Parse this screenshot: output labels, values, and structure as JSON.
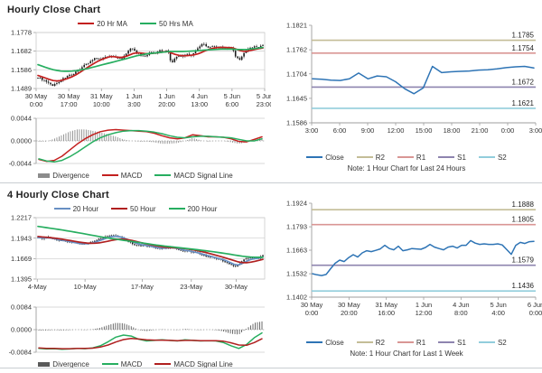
{
  "colors": {
    "red": "#C3201F",
    "darkred": "#B02020",
    "green": "#27AE60",
    "steel": "#688FC3",
    "blue": "#2E74B5",
    "olive": "#C4BD97",
    "pink": "#D99694",
    "purple": "#8E84AF",
    "cyan": "#92CDDC",
    "gray": "#8C8C8C",
    "darkgray": "#595959",
    "candle": "#1A1A1A",
    "axis": "#9E9E9E",
    "grid": "#CCCCCC",
    "text": "#333333",
    "divider": "#C9CDD2"
  },
  "chart_data": [
    {
      "id": "hourly",
      "type": "candlestick",
      "title": "Hourly Close Chart",
      "legend": [
        {
          "label": "20 Hr MA",
          "color": "red"
        },
        {
          "label": "50 Hrs MA",
          "color": "green"
        }
      ],
      "ylim": [
        1.1489,
        1.1778
      ],
      "yticks": [
        "1.1778",
        "1.1682",
        "1.1586",
        "1.1489"
      ],
      "xticks": [
        [
          "30 May",
          "0:00"
        ],
        [
          "30 May",
          "17:00"
        ],
        [
          "31 May",
          "10:00"
        ],
        [
          "1 Jun",
          "3:00"
        ],
        [
          "1 Jun",
          "20:00"
        ],
        [
          "4 Jun",
          "13:00"
        ],
        [
          "5 Jun",
          "6:00"
        ],
        [
          "5 Jun",
          "23:00"
        ]
      ],
      "close": [
        1.1545,
        1.1538,
        1.1525,
        1.1512,
        1.1505,
        1.1518,
        1.153,
        1.1545,
        1.156,
        1.1552,
        1.1575,
        1.159,
        1.1608,
        1.162,
        1.1632,
        1.1645,
        1.1638,
        1.1652,
        1.1648,
        1.166,
        1.1655,
        1.1645,
        1.164,
        1.1665,
        1.169,
        1.1698,
        1.1672,
        1.166,
        1.1655,
        1.167,
        1.1678,
        1.1672,
        1.1685,
        1.168,
        1.169,
        1.1618,
        1.1648,
        1.166,
        1.1655,
        1.1665,
        1.166,
        1.167,
        1.1695,
        1.172,
        1.171,
        1.17,
        1.1705,
        1.1698,
        1.1702,
        1.17,
        1.1695,
        1.1698,
        1.1648,
        1.164,
        1.1668,
        1.1692,
        1.17,
        1.1705,
        1.1702,
        1.1712
      ],
      "series": [
        {
          "name": "20 Hr MA",
          "color": "red",
          "values": [
            1.1556,
            1.155,
            1.1543,
            1.1536,
            1.153,
            1.1528,
            1.153,
            1.1535,
            1.1542,
            1.155,
            1.156,
            1.1572,
            1.1585,
            1.1598,
            1.161,
            1.1622,
            1.1632,
            1.1641,
            1.1648,
            1.1654,
            1.1653,
            1.165,
            1.165,
            1.1654,
            1.1662,
            1.167,
            1.1673,
            1.1672,
            1.167,
            1.1669,
            1.167,
            1.1672,
            1.1675,
            1.1678,
            1.168,
            1.1672,
            1.1665,
            1.166,
            1.1658,
            1.1658,
            1.166,
            1.1663,
            1.1668,
            1.1676,
            1.1685,
            1.1692,
            1.1697,
            1.17,
            1.1701,
            1.1701,
            1.17,
            1.1699,
            1.1692,
            1.1685,
            1.1681,
            1.1682,
            1.1686,
            1.1691,
            1.1695,
            1.1698
          ]
        },
        {
          "name": "50 Hrs MA",
          "color": "green",
          "values": [
            1.1612,
            1.1605,
            1.1598,
            1.1592,
            1.1586,
            1.1582,
            1.1579,
            1.1578,
            1.1578,
            1.1579,
            1.1581,
            1.1584,
            1.1588,
            1.1592,
            1.1597,
            1.1602,
            1.1607,
            1.1612,
            1.1617,
            1.1622,
            1.1627,
            1.1632,
            1.1637,
            1.1642,
            1.1648,
            1.1653,
            1.1658,
            1.1662,
            1.1666,
            1.1669,
            1.1671,
            1.1673,
            1.1675,
            1.1677,
            1.1679,
            1.168,
            1.168,
            1.168,
            1.168,
            1.1681,
            1.1682,
            1.1683,
            1.1684,
            1.1686,
            1.1688,
            1.1689,
            1.169,
            1.1691,
            1.1692,
            1.1692,
            1.1692,
            1.1692,
            1.1691,
            1.169,
            1.169,
            1.1691,
            1.1693,
            1.1695,
            1.1698,
            1.1701
          ]
        }
      ],
      "macd": {
        "ylim": [
          -0.0044,
          0.0044
        ],
        "yticks": [
          "0.0044",
          "0.0000",
          "-0.0044"
        ],
        "macd_color": "red",
        "signal_color": "green",
        "bar_color": "gray",
        "macd": [
          -0.0036,
          -0.004,
          -0.0038,
          -0.003,
          -0.0018,
          -0.0006,
          0.0004,
          0.0012,
          0.0018,
          0.0021,
          0.0022,
          0.0021,
          0.002,
          0.0019,
          0.0018,
          0.0015,
          0.001,
          0.0006,
          0.0004,
          0.0006,
          0.0012,
          0.001,
          0.0008,
          0.0008,
          0.0007,
          0.0004,
          -0.0001,
          -0.0002,
          0.0003,
          0.0008
        ],
        "signal": [
          -0.0035,
          -0.0039,
          -0.0041,
          -0.0038,
          -0.0031,
          -0.0022,
          -0.0012,
          -0.0002,
          0.0006,
          0.0012,
          0.0016,
          0.0019,
          0.002,
          0.002,
          0.0019,
          0.0017,
          0.0014,
          0.001,
          0.0007,
          0.0006,
          0.0008,
          0.0009,
          0.0009,
          0.0008,
          0.0007,
          0.0006,
          0.0003,
          0.0,
          0.0,
          0.0004
        ],
        "legend": [
          {
            "label": "Divergence",
            "color": "gray",
            "type": "bar"
          },
          {
            "label": "MACD",
            "color": "red"
          },
          {
            "label": "MACD Signal Line",
            "color": "green"
          }
        ]
      }
    },
    {
      "id": "pivot24",
      "type": "line",
      "ylim": [
        1.1586,
        1.1821
      ],
      "yticks": [
        "1.1821",
        "1.1762",
        "1.1704",
        "1.1645",
        "1.1586"
      ],
      "xticks": [
        "3:00",
        "6:00",
        "9:00",
        "12:00",
        "15:00",
        "18:00",
        "21:00",
        "0:00",
        "3:00"
      ],
      "close": [
        1.1692,
        1.1691,
        1.1689,
        1.1688,
        1.1692,
        1.1706,
        1.1692,
        1.1699,
        1.1697,
        1.1685,
        1.1668,
        1.1656,
        1.167,
        1.1722,
        1.1707,
        1.1709,
        1.171,
        1.1711,
        1.1713,
        1.1714,
        1.1716,
        1.1719,
        1.1721,
        1.1722,
        1.1718
      ],
      "close_color": "blue",
      "pivots": [
        {
          "name": "R2",
          "label": "1.1785",
          "value": 1.1785,
          "color": "olive"
        },
        {
          "name": "R1",
          "label": "1.1754",
          "value": 1.1754,
          "color": "pink"
        },
        {
          "name": "S1",
          "label": "1.1672",
          "value": 1.1672,
          "color": "purple"
        },
        {
          "name": "S2",
          "label": "1.1621",
          "value": 1.1621,
          "color": "cyan"
        }
      ],
      "legend": [
        {
          "label": "Close",
          "color": "blue"
        },
        {
          "label": "R2",
          "color": "olive"
        },
        {
          "label": "R1",
          "color": "pink"
        },
        {
          "label": "S1",
          "color": "purple"
        },
        {
          "label": "S2",
          "color": "cyan"
        }
      ],
      "note": "Note: 1 Hour Chart for Last 24 Hours"
    },
    {
      "id": "fourhourly",
      "type": "candlestick",
      "title": "4 Hourly Close Chart",
      "legend": [
        {
          "label": "20 Hour",
          "color": "steel"
        },
        {
          "label": "50 Hour",
          "color": "darkred"
        },
        {
          "label": "200 Hour",
          "color": "green"
        }
      ],
      "ylim": [
        1.1395,
        1.2217
      ],
      "yticks": [
        "1.2217",
        "1.1943",
        "1.1669",
        "1.1395"
      ],
      "xticks": [
        "4-May",
        "10-May",
        "17-May",
        "23-May",
        "30-May"
      ],
      "xfrac": [
        0.005,
        0.214,
        0.464,
        0.679,
        0.875
      ],
      "close": [
        1.1952,
        1.194,
        1.1958,
        1.1945,
        1.193,
        1.191,
        1.1918,
        1.19,
        1.1885,
        1.187,
        1.1878,
        1.186,
        1.187,
        1.189,
        1.1905,
        1.193,
        1.195,
        1.197,
        1.1985,
        1.1975,
        1.196,
        1.193,
        1.1895,
        1.187,
        1.185,
        1.1838,
        1.1848,
        1.183,
        1.182,
        1.1808,
        1.1798,
        1.181,
        1.1825,
        1.1815,
        1.18,
        1.178,
        1.1765,
        1.1772,
        1.175,
        1.174,
        1.172,
        1.17,
        1.169,
        1.1672,
        1.1662,
        1.1645,
        1.162,
        1.159,
        1.1565,
        1.1585,
        1.164,
        1.167,
        1.168,
        1.1675,
        1.1678,
        1.1712
      ],
      "series": [
        {
          "name": "20 Hour",
          "color": "steel",
          "values": [
            1.195,
            1.1946,
            1.1948,
            1.1945,
            1.1936,
            1.1922,
            1.1914,
            1.1905,
            1.1893,
            1.1882,
            1.1874,
            1.1868,
            1.1868,
            1.1876,
            1.189,
            1.1908,
            1.1928,
            1.1948,
            1.1963,
            1.1968,
            1.1962,
            1.1946,
            1.1922,
            1.1898,
            1.1876,
            1.1858,
            1.1848,
            1.184,
            1.183,
            1.1818,
            1.1808,
            1.1808,
            1.1813,
            1.1813,
            1.1806,
            1.1793,
            1.178,
            1.1772,
            1.176,
            1.1748,
            1.1734,
            1.1718,
            1.1703,
            1.1688,
            1.1674,
            1.166,
            1.1641,
            1.1616,
            1.1592,
            1.1585,
            1.1605,
            1.1634,
            1.1657,
            1.1668,
            1.1674,
            1.169
          ]
        },
        {
          "name": "50 Hour",
          "color": "darkred",
          "values": [
            1.1965,
            1.196,
            1.1955,
            1.195,
            1.1944,
            1.1936,
            1.1928,
            1.1919,
            1.191,
            1.19,
            1.1891,
            1.1883,
            1.1877,
            1.1874,
            1.1875,
            1.188,
            1.1889,
            1.19,
            1.1912,
            1.1922,
            1.1928,
            1.1928,
            1.1922,
            1.1912,
            1.1899,
            1.1885,
            1.1872,
            1.186,
            1.1849,
            1.1839,
            1.183,
            1.1823,
            1.1818,
            1.1815,
            1.1812,
            1.1808,
            1.1802,
            1.1795,
            1.1786,
            1.1776,
            1.1764,
            1.1751,
            1.1737,
            1.1722,
            1.1707,
            1.1692,
            1.1676,
            1.1659,
            1.1641,
            1.1625,
            1.1615,
            1.1614,
            1.1621,
            1.1632,
            1.1645,
            1.1659
          ]
        },
        {
          "name": "200 Hour",
          "color": "green",
          "values": [
            1.21,
            1.2092,
            1.2084,
            1.2076,
            1.2068,
            1.206,
            1.2051,
            1.2042,
            1.2033,
            1.2024,
            1.2014,
            1.2004,
            1.1994,
            1.1984,
            1.1974,
            1.1964,
            1.1955,
            1.1946,
            1.1938,
            1.193,
            1.1922,
            1.1914,
            1.1906,
            1.1898,
            1.189,
            1.1882,
            1.1874,
            1.1866,
            1.1858,
            1.185,
            1.1843,
            1.1836,
            1.183,
            1.1824,
            1.1818,
            1.1812,
            1.1806,
            1.18,
            1.1794,
            1.1788,
            1.1781,
            1.1774,
            1.1767,
            1.176,
            1.1752,
            1.1744,
            1.1736,
            1.1727,
            1.1718,
            1.1709,
            1.1701,
            1.1695,
            1.169,
            1.1687,
            1.1686,
            1.1686
          ]
        }
      ],
      "macd": {
        "ylim": [
          -0.0084,
          0.0084
        ],
        "yticks": [
          "0.0084",
          "0.0000",
          "-0.0084"
        ],
        "macd_color": "green",
        "signal_color": "darkred",
        "bar_color": "darkgray",
        "macd": [
          -0.007,
          -0.0072,
          -0.0071,
          -0.0073,
          -0.0072,
          -0.007,
          -0.0071,
          -0.0068,
          -0.006,
          -0.0045,
          -0.0028,
          -0.002,
          -0.0024,
          -0.0036,
          -0.0042,
          -0.004,
          -0.0038,
          -0.004,
          -0.0042,
          -0.0038,
          -0.004,
          -0.0042,
          -0.0041,
          -0.0042,
          -0.0048,
          -0.006,
          -0.007,
          -0.0055,
          -0.003,
          -0.0012
        ],
        "signal": [
          -0.0068,
          -0.007,
          -0.007,
          -0.0071,
          -0.0071,
          -0.007,
          -0.007,
          -0.0069,
          -0.0065,
          -0.0057,
          -0.0046,
          -0.0037,
          -0.0033,
          -0.0035,
          -0.0038,
          -0.0039,
          -0.0039,
          -0.004,
          -0.0041,
          -0.004,
          -0.004,
          -0.0041,
          -0.0041,
          -0.0041,
          -0.0043,
          -0.0049,
          -0.0057,
          -0.0058,
          -0.0048,
          -0.0034
        ],
        "legend": [
          {
            "label": "Divergence",
            "color": "darkgray",
            "type": "bar"
          },
          {
            "label": "MACD",
            "color": "green"
          },
          {
            "label": "MACD Signal Line",
            "color": "darkred"
          }
        ]
      }
    },
    {
      "id": "pivot1w",
      "type": "line",
      "ylim": [
        1.1402,
        1.1924
      ],
      "yticks": [
        "1.1924",
        "1.1793",
        "1.1663",
        "1.1532",
        "1.1402"
      ],
      "xticks": [
        [
          "30 May",
          "0:00"
        ],
        [
          "30 May",
          "20:00"
        ],
        [
          "31 May",
          "16:00"
        ],
        [
          "1 Jun",
          "12:00"
        ],
        [
          "4 Jun",
          "8:00"
        ],
        [
          "5 Jun",
          "4:00"
        ],
        [
          "6 Jun",
          "0:00"
        ]
      ],
      "close": [
        1.1532,
        1.1526,
        1.1522,
        1.1528,
        1.156,
        1.159,
        1.1608,
        1.16,
        1.1622,
        1.1638,
        1.1625,
        1.1648,
        1.166,
        1.1655,
        1.1662,
        1.167,
        1.169,
        1.1672,
        1.1665,
        1.1685,
        1.166,
        1.1665,
        1.1672,
        1.167,
        1.1668,
        1.1678,
        1.1695,
        1.168,
        1.1672,
        1.1665,
        1.168,
        1.1685,
        1.1675,
        1.169,
        1.169,
        1.1716,
        1.1702,
        1.1695,
        1.1698,
        1.1695,
        1.1695,
        1.1698,
        1.1692,
        1.1666,
        1.164,
        1.169,
        1.1706,
        1.17,
        1.171,
        1.1712
      ],
      "close_color": "blue",
      "pivots": [
        {
          "name": "R2",
          "label": "1.1888",
          "value": 1.1888,
          "color": "olive"
        },
        {
          "name": "R1",
          "label": "1.1805",
          "value": 1.1805,
          "color": "pink"
        },
        {
          "name": "S1",
          "label": "1.1579",
          "value": 1.1579,
          "color": "purple"
        },
        {
          "name": "S2",
          "label": "1.1436",
          "value": 1.1436,
          "color": "cyan"
        }
      ],
      "legend": [
        {
          "label": "Close",
          "color": "blue"
        },
        {
          "label": "R2",
          "color": "olive"
        },
        {
          "label": "R1",
          "color": "pink"
        },
        {
          "label": "S1",
          "color": "purple"
        },
        {
          "label": "S2",
          "color": "cyan"
        }
      ],
      "note": "Note: 1 Hour Chart for Last 1 Week"
    }
  ]
}
